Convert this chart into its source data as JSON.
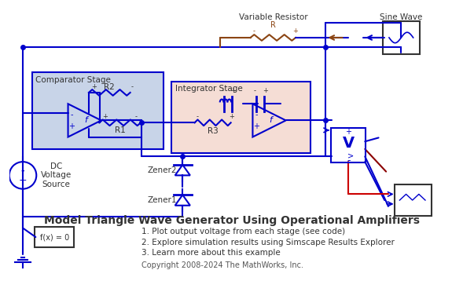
{
  "title": "Model Triangle Wave Generator Using Operational Amplifiers",
  "items": [
    "1. Plot output voltage from each stage (see code)",
    "2. Explore simulation results using Simscape Results Explorer",
    "3. Learn more about this example"
  ],
  "copyright": "Copyright 2008-2024 The MathWorks, Inc.",
  "comparator_label": "Comparator Stage",
  "integrator_label": "Integrator Stage",
  "variable_resistor_label": "Variable Resistor",
  "sine_wave_label": "Sine Wave",
  "r1_label": "R1",
  "r2_label": "R2",
  "r3_label": "R3",
  "r_label": "R",
  "zener1_label": "Zener1",
  "zener2_label": "Zener2",
  "dc_label": "DC\nVoltage\nSource",
  "bg_color": "#ffffff",
  "comp_box_color": "#c8d4e8",
  "integ_box_color": "#f5ddd5",
  "wire_color": "#0000cc",
  "resistor_color": "#8B4513",
  "arrow_color": "#0000cc"
}
